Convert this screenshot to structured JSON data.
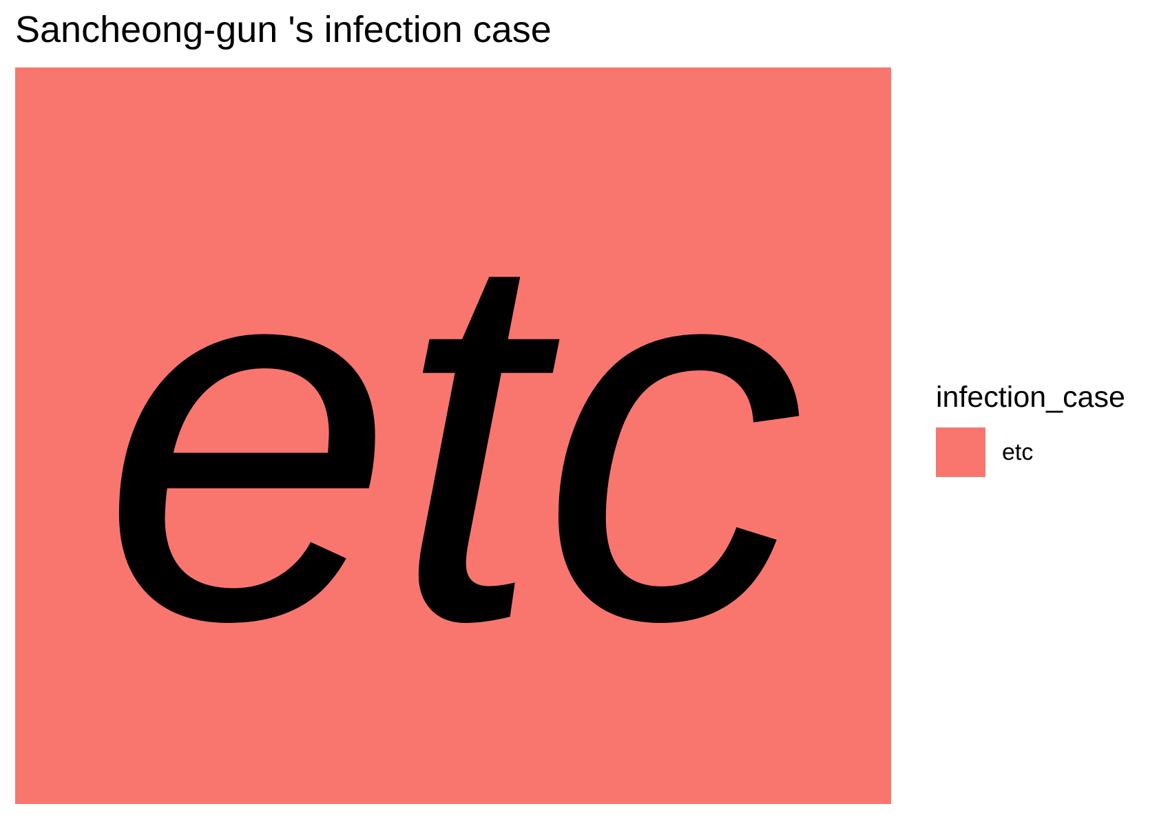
{
  "chart_data": {
    "type": "treemap",
    "title": "Sancheong-gun 's infection case",
    "legend": {
      "title": "infection_case",
      "placement": "right",
      "entries": [
        {
          "label": "etc",
          "color": "#F8766D"
        }
      ]
    },
    "tiles": [
      {
        "label": "etc",
        "share": 1.0,
        "color": "#F8766D",
        "text_style": "italic",
        "text_color": "#000000"
      }
    ]
  }
}
